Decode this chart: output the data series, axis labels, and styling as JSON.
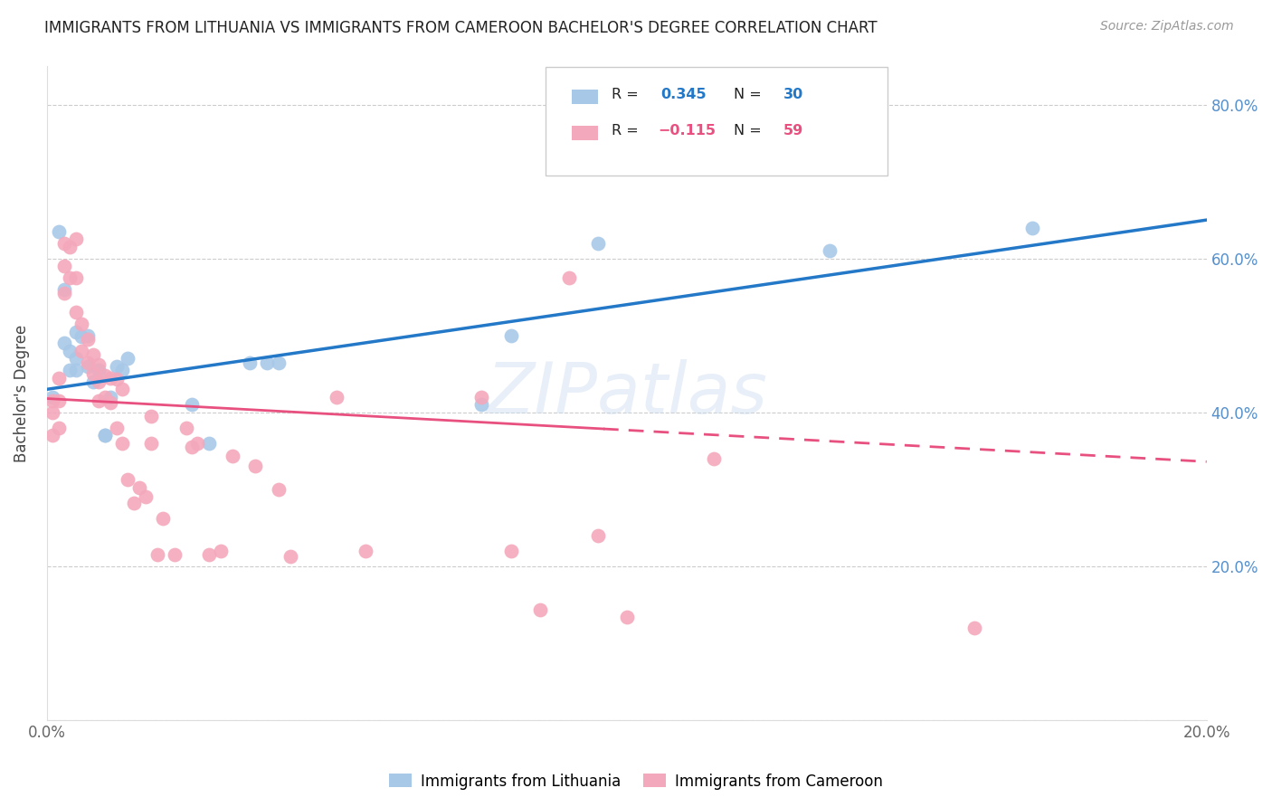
{
  "title": "IMMIGRANTS FROM LITHUANIA VS IMMIGRANTS FROM CAMEROON BACHELOR'S DEGREE CORRELATION CHART",
  "source": "Source: ZipAtlas.com",
  "ylabel": "Bachelor's Degree",
  "xlim": [
    0.0,
    0.2
  ],
  "ylim": [
    0.0,
    0.85
  ],
  "lithuania_color": "#a8c8e8",
  "cameroon_color": "#f4a8bc",
  "trendline_lithuania_color": "#2478c8",
  "trendline_cameroon_color": "#e85080",
  "R_lithuania": 0.345,
  "N_lithuania": 30,
  "R_cameroon": -0.115,
  "N_cameroon": 59,
  "watermark": "ZIPatlas",
  "legend_label_lithuania": "Immigrants from Lithuania",
  "legend_label_cameroon": "Immigrants from Cameroon",
  "trendline_lit_x0": 0.0,
  "trendline_lit_y0": 0.43,
  "trendline_lit_x1": 0.2,
  "trendline_lit_y1": 0.65,
  "trendline_cam_x0": 0.0,
  "trendline_cam_y0": 0.418,
  "trendline_cam_x1": 0.2,
  "trendline_cam_y1": 0.336,
  "trendline_cam_solid_end": 0.096,
  "lithuania_x": [
    0.001,
    0.002,
    0.003,
    0.003,
    0.004,
    0.004,
    0.005,
    0.005,
    0.005,
    0.006,
    0.007,
    0.007,
    0.008,
    0.009,
    0.01,
    0.01,
    0.011,
    0.012,
    0.013,
    0.014,
    0.025,
    0.028,
    0.035,
    0.038,
    0.04,
    0.075,
    0.08,
    0.095,
    0.135,
    0.17
  ],
  "lithuania_y": [
    0.42,
    0.635,
    0.56,
    0.49,
    0.48,
    0.455,
    0.505,
    0.47,
    0.455,
    0.498,
    0.5,
    0.46,
    0.44,
    0.455,
    0.37,
    0.37,
    0.42,
    0.46,
    0.455,
    0.47,
    0.41,
    0.36,
    0.465,
    0.465,
    0.465,
    0.41,
    0.5,
    0.62,
    0.61,
    0.64
  ],
  "cameroon_x": [
    0.001,
    0.001,
    0.001,
    0.002,
    0.002,
    0.002,
    0.003,
    0.003,
    0.003,
    0.004,
    0.004,
    0.005,
    0.005,
    0.005,
    0.006,
    0.006,
    0.007,
    0.007,
    0.008,
    0.008,
    0.009,
    0.009,
    0.009,
    0.01,
    0.01,
    0.011,
    0.011,
    0.012,
    0.012,
    0.013,
    0.013,
    0.014,
    0.015,
    0.016,
    0.017,
    0.018,
    0.018,
    0.019,
    0.02,
    0.022,
    0.024,
    0.025,
    0.026,
    0.028,
    0.03,
    0.032,
    0.036,
    0.04,
    0.042,
    0.05,
    0.055,
    0.075,
    0.08,
    0.085,
    0.09,
    0.095,
    0.1,
    0.115,
    0.16
  ],
  "cameroon_y": [
    0.415,
    0.4,
    0.37,
    0.445,
    0.415,
    0.38,
    0.62,
    0.59,
    0.555,
    0.615,
    0.575,
    0.625,
    0.575,
    0.53,
    0.515,
    0.48,
    0.495,
    0.465,
    0.475,
    0.45,
    0.462,
    0.44,
    0.415,
    0.448,
    0.42,
    0.445,
    0.413,
    0.443,
    0.38,
    0.43,
    0.36,
    0.313,
    0.282,
    0.302,
    0.29,
    0.395,
    0.36,
    0.215,
    0.262,
    0.215,
    0.38,
    0.355,
    0.36,
    0.215,
    0.22,
    0.343,
    0.33,
    0.3,
    0.213,
    0.42,
    0.22,
    0.42,
    0.22,
    0.143,
    0.575,
    0.24,
    0.134,
    0.34,
    0.12
  ]
}
